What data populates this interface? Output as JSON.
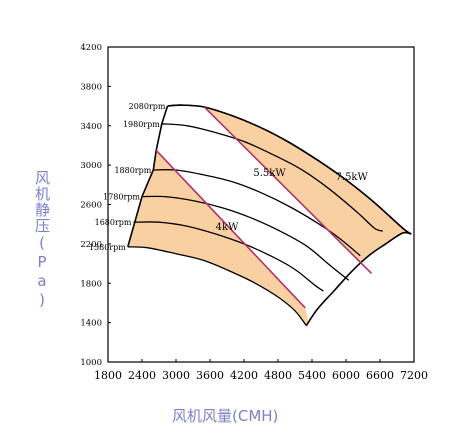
{
  "chart_data": {
    "type": "line",
    "title": "",
    "xlabel": "风机风量(CMH)",
    "ylabel": "风机静压(Pa)",
    "xlim": [
      1800,
      7200
    ],
    "ylim": [
      1000,
      4200
    ],
    "xticks": [
      1800,
      2400,
      3000,
      3600,
      4200,
      4800,
      5400,
      6000,
      6600,
      7200
    ],
    "yticks": [
      1000,
      1400,
      1800,
      2200,
      2600,
      3000,
      3400,
      3800,
      4200
    ],
    "grid": false,
    "fill_color": "#f9d0a2",
    "divider_color": "#b5306b",
    "speed_curves": [
      {
        "label": "2080rpm",
        "points": [
          [
            2850,
            3600
          ],
          [
            3100,
            3610
          ],
          [
            3500,
            3590
          ],
          [
            4000,
            3500
          ],
          [
            4500,
            3380
          ],
          [
            5000,
            3230
          ],
          [
            5500,
            3050
          ],
          [
            6000,
            2850
          ],
          [
            6500,
            2620
          ],
          [
            7000,
            2360
          ],
          [
            7150,
            2300
          ]
        ]
      },
      {
        "label": "1980rpm",
        "points": [
          [
            2750,
            3420
          ],
          [
            3200,
            3400
          ],
          [
            3700,
            3330
          ],
          [
            4200,
            3240
          ],
          [
            4700,
            3110
          ],
          [
            5200,
            2960
          ],
          [
            5700,
            2760
          ],
          [
            6200,
            2520
          ],
          [
            6500,
            2360
          ],
          [
            6650,
            2330
          ]
        ]
      },
      {
        "label": "1880rpm",
        "points": [
          [
            2600,
            2950
          ],
          [
            3000,
            2950
          ],
          [
            3500,
            2900
          ],
          [
            4000,
            2830
          ],
          [
            4500,
            2720
          ],
          [
            5000,
            2580
          ],
          [
            5500,
            2410
          ],
          [
            5900,
            2250
          ],
          [
            6250,
            2080
          ]
        ]
      },
      {
        "label": "1780rpm",
        "points": [
          [
            2400,
            2680
          ],
          [
            2800,
            2680
          ],
          [
            3300,
            2640
          ],
          [
            3800,
            2570
          ],
          [
            4300,
            2470
          ],
          [
            4800,
            2340
          ],
          [
            5300,
            2180
          ],
          [
            5700,
            1990
          ],
          [
            5980,
            1860
          ],
          [
            6050,
            1830
          ]
        ]
      },
      {
        "label": "1680rpm",
        "points": [
          [
            2250,
            2420
          ],
          [
            2700,
            2420
          ],
          [
            3200,
            2380
          ],
          [
            3700,
            2300
          ],
          [
            4200,
            2200
          ],
          [
            4700,
            2070
          ],
          [
            5100,
            1940
          ],
          [
            5450,
            1780
          ],
          [
            5600,
            1720
          ]
        ]
      },
      {
        "label": "1580rpm",
        "points": [
          [
            2150,
            2170
          ],
          [
            2500,
            2160
          ],
          [
            3000,
            2100
          ],
          [
            3500,
            2030
          ],
          [
            4000,
            1910
          ],
          [
            4400,
            1800
          ],
          [
            4800,
            1660
          ],
          [
            5100,
            1520
          ],
          [
            5300,
            1370
          ]
        ]
      }
    ],
    "region_boundaries": {
      "left": [
        [
          2150,
          2170
        ],
        [
          2400,
          2680
        ],
        [
          2600,
          2950
        ],
        [
          2650,
          3150
        ],
        [
          2750,
          3420
        ],
        [
          2850,
          3600
        ]
      ],
      "lower_arc": [
        [
          5300,
          1370
        ],
        [
          5500,
          1540
        ],
        [
          5800,
          1730
        ],
        [
          6100,
          1920
        ],
        [
          6400,
          2080
        ],
        [
          6700,
          2200
        ],
        [
          7000,
          2310
        ],
        [
          7150,
          2300
        ]
      ]
    },
    "dividers": [
      {
        "points": [
          [
            2650,
            3150
          ],
          [
            5280,
            1550
          ]
        ]
      },
      {
        "points": [
          [
            3500,
            3590
          ],
          [
            6450,
            1900
          ]
        ]
      }
    ],
    "annotations": [
      {
        "text": "4kW",
        "x": 3900,
        "y": 2340
      },
      {
        "text": "5.5kW",
        "x": 4650,
        "y": 2890
      },
      {
        "text": "7.5kW",
        "x": 6100,
        "y": 2850
      }
    ]
  }
}
